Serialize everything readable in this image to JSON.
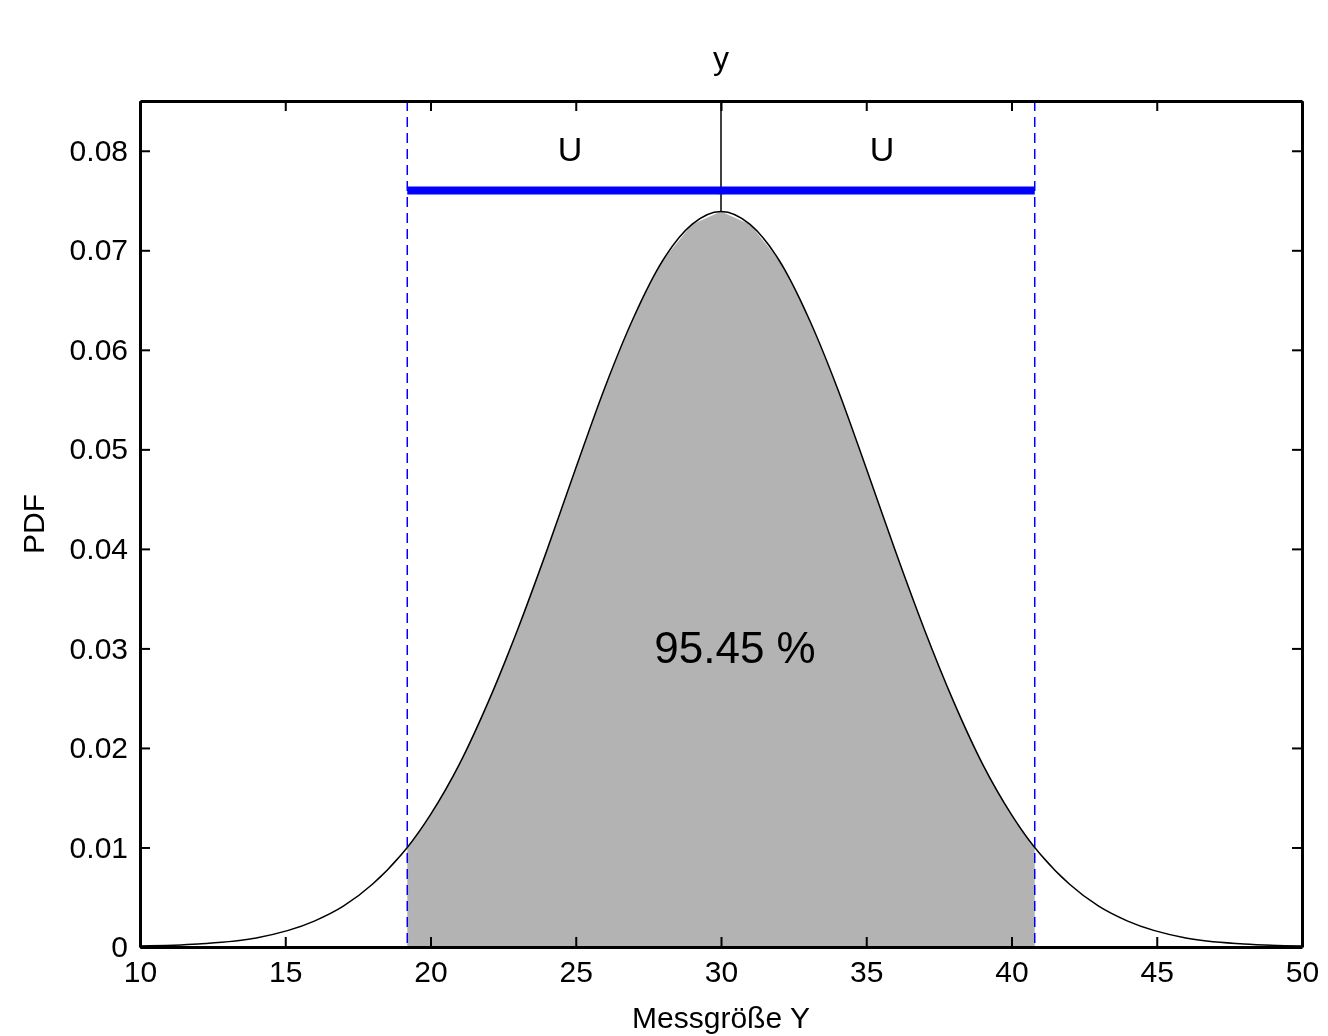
{
  "chart_data": {
    "type": "line",
    "title": "y",
    "xlabel": "Messgröße Y",
    "ylabel": "PDF",
    "xlim": [
      10,
      50
    ],
    "xticks": [
      10,
      15,
      20,
      25,
      30,
      35,
      40,
      45,
      50
    ],
    "ylim": [
      0,
      0.085
    ],
    "yticks": [
      0,
      0.01,
      0.02,
      0.03,
      0.04,
      0.05,
      0.06,
      0.07,
      0.08
    ],
    "grid": false,
    "series": [
      {
        "type": "area",
        "color": "#b3b3b3",
        "x": [
          19.2,
          20,
          21,
          22,
          23,
          24,
          25,
          26,
          27,
          28,
          29,
          30,
          31,
          32,
          33,
          34,
          35,
          36,
          37,
          38,
          39,
          40,
          40.8
        ],
        "values": [
          0.01,
          0.0133,
          0.0184,
          0.0247,
          0.0319,
          0.0398,
          0.0481,
          0.0562,
          0.0633,
          0.069,
          0.0726,
          0.0739,
          0.0726,
          0.069,
          0.0633,
          0.0562,
          0.0481,
          0.0398,
          0.0319,
          0.0247,
          0.0184,
          0.0133,
          0.01
        ]
      },
      {
        "color": "#000000",
        "x": [
          10,
          12,
          14,
          16,
          17,
          18,
          19,
          19.2,
          20,
          21,
          22,
          23,
          24,
          25,
          26,
          27,
          28,
          29,
          30,
          31,
          32,
          33,
          34,
          35,
          36,
          37,
          38,
          39,
          40,
          40.8,
          41,
          42,
          43,
          44,
          46,
          48,
          50
        ],
        "values": [
          0.0001,
          0.0003,
          0.0009,
          0.0026,
          0.0041,
          0.0063,
          0.0093,
          0.01,
          0.0133,
          0.0184,
          0.0247,
          0.0319,
          0.0398,
          0.0481,
          0.0562,
          0.0633,
          0.069,
          0.0726,
          0.0739,
          0.0726,
          0.069,
          0.0633,
          0.0562,
          0.0481,
          0.0398,
          0.0319,
          0.0247,
          0.0184,
          0.0133,
          0.01,
          0.0093,
          0.0063,
          0.0041,
          0.0026,
          0.0009,
          0.0003,
          0.0001
        ]
      },
      {
        "color": "#000000",
        "x": [
          30,
          30
        ],
        "values": [
          0.0739,
          0.085
        ]
      },
      {
        "type": "scatter",
        "color": "#0000ff",
        "marker": "square",
        "x": [
          30
        ],
        "values": [
          0.076
        ],
        "xerrors": [
          10.8
        ]
      }
    ],
    "ref_lines": [
      {
        "axis": "x",
        "value": 19.2,
        "color": "#0000ff",
        "line_style": "dashed"
      },
      {
        "axis": "x",
        "value": 40.8,
        "color": "#0000ff",
        "line_style": "dashed"
      }
    ],
    "annotations": [
      "U",
      "U",
      "95.45 %"
    ]
  }
}
